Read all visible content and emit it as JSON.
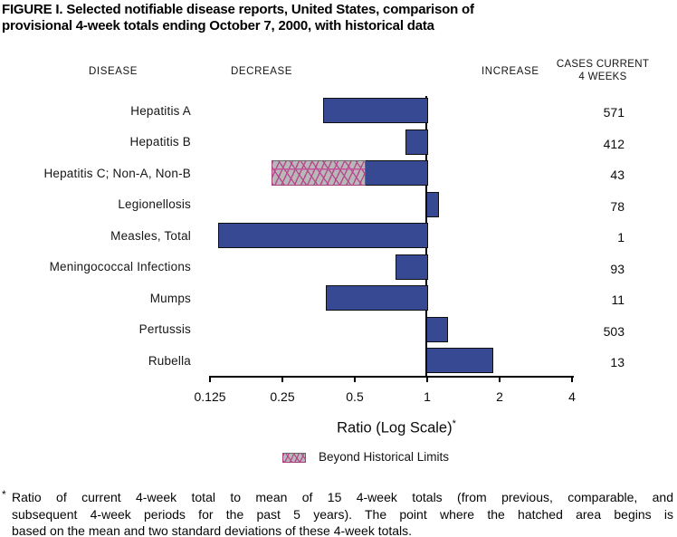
{
  "title": {
    "line1": "FIGURE I. Selected notifiable disease reports, United States, comparison of",
    "line2": "provisional 4-week totals ending October 7, 2000, with historical data"
  },
  "headers": {
    "disease": "DISEASE",
    "decrease": "DECREASE",
    "increase": "INCREASE",
    "cases_line1": "CASES CURRENT",
    "cases_line2": "4 WEEKS"
  },
  "chart_data": {
    "type": "bar",
    "orientation": "horizontal",
    "scale": "log2",
    "baseline": 1,
    "xlim": [
      0.125,
      4
    ],
    "axis_ticks": [
      0.125,
      0.25,
      0.5,
      1,
      2,
      4
    ],
    "tick_labels": [
      "0.125",
      "0.25",
      "0.5",
      "1",
      "2",
      "4"
    ],
    "xlabel": "Ratio (Log Scale)*",
    "grid": false,
    "legend_position": "bottom",
    "rows": [
      {
        "disease": "Hepatitis A",
        "cases": "571",
        "ratio": 0.37
      },
      {
        "disease": "Hepatitis B",
        "cases": "412",
        "ratio": 0.81
      },
      {
        "disease": "Hepatitis C; Non-A, Non-B",
        "cases": "43",
        "ratio": 0.225,
        "beyond_limit_from": 0.55
      },
      {
        "disease": "Legionellosis",
        "cases": "78",
        "ratio": 1.12
      },
      {
        "disease": "Measles, Total",
        "cases": "1",
        "ratio": 0.135
      },
      {
        "disease": "Meningococcal Infections",
        "cases": "93",
        "ratio": 0.74
      },
      {
        "disease": "Mumps",
        "cases": "11",
        "ratio": 0.38
      },
      {
        "disease": "Pertussis",
        "cases": "503",
        "ratio": 1.22
      },
      {
        "disease": "Rubella",
        "cases": "13",
        "ratio": 1.88
      }
    ]
  },
  "axis_label": {
    "text": "Ratio (Log Scale)",
    "superscript": "*"
  },
  "legend": {
    "label": "Beyond Historical Limits"
  },
  "footnote": {
    "marker": "*",
    "lines": [
      "Ratio of current 4-week total to mean of 15 4-week totals (from previous, comparable, and",
      "subsequent 4-week periods for the past 5 years). The point where the hatched area begins is",
      "based on the mean and two standard deviations of these 4-week totals."
    ]
  },
  "colors": {
    "bar_blue": "#364992",
    "bar_border": "#0f0f0f",
    "hatch_background": "#b9b7b7",
    "hatch_line": "#b5488e",
    "axis": "#000000"
  }
}
